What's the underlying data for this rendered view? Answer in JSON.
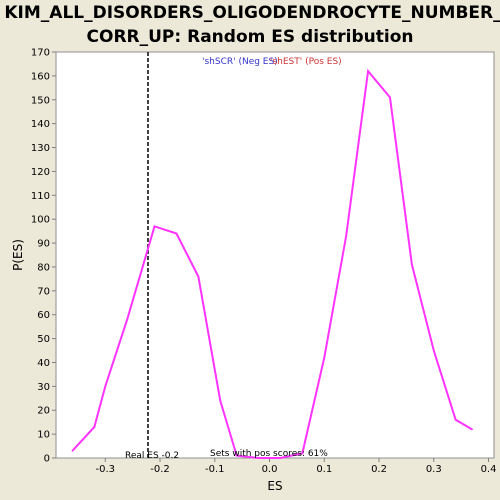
{
  "chart_data": {
    "type": "line",
    "title_line1": "KIM_ALL_DISORDERS_OLIGODENDROCYTE_NUMBER_",
    "title_line2": "CORR_UP: Random ES distribution",
    "xlabel": "ES",
    "ylabel": "P(ES)",
    "xlim": [
      -0.39,
      0.41
    ],
    "ylim": [
      0,
      170
    ],
    "x_ticks": [
      -0.3,
      -0.2,
      -0.1,
      0.0,
      0.1,
      0.2,
      0.3,
      0.4
    ],
    "x_tick_labels": [
      "-0.3",
      "-0.2",
      "-0.1",
      "0.0",
      "0.1",
      "0.2",
      "0.3",
      "0.4"
    ],
    "y_ticks": [
      0,
      10,
      20,
      30,
      40,
      50,
      60,
      70,
      80,
      90,
      100,
      110,
      120,
      130,
      140,
      150,
      160,
      170
    ],
    "y_tick_labels": [
      "0",
      "10",
      "20",
      "30",
      "40",
      "50",
      "60",
      "70",
      "80",
      "90",
      "100",
      "110",
      "120",
      "130",
      "140",
      "150",
      "160",
      "170"
    ],
    "series": [
      {
        "color": "#ff33ff",
        "x": [
          -0.36,
          -0.32,
          -0.3,
          -0.26,
          -0.21,
          -0.17,
          -0.13,
          -0.09,
          -0.06,
          -0.02,
          0.02,
          0.06,
          0.1,
          0.14,
          0.18,
          0.22,
          0.26,
          0.3,
          0.34,
          0.37
        ],
        "y": [
          3,
          13,
          30,
          58,
          97,
          94,
          76,
          24,
          1,
          0,
          0,
          2,
          42,
          93,
          162,
          151,
          81,
          45,
          16,
          12
        ]
      }
    ],
    "real_es_line": {
      "x": -0.222,
      "label": "Real ES -0.2",
      "color": "#404040"
    },
    "legend": [
      {
        "label": "'shSCR' (Neg ES)",
        "color": "#3333cc"
      },
      {
        "label": "'shEST' (Pos ES)",
        "color": "#cc3333"
      }
    ],
    "footer_note": "Sets with pos scores: 61%",
    "grid": false
  }
}
